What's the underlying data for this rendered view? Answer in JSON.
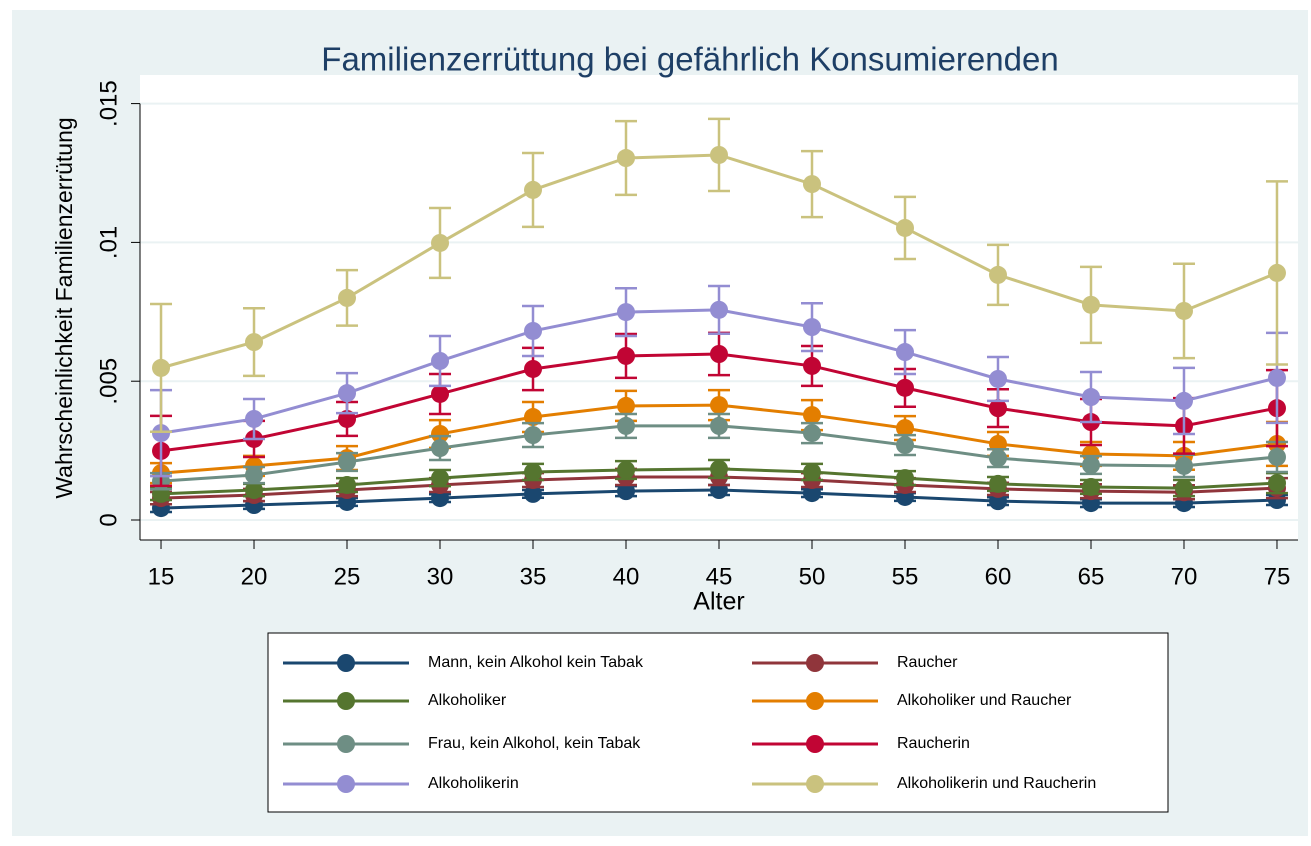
{
  "chart_data": {
    "type": "line",
    "title": "Familienzerrüttung bei gefährlich Konsumierenden",
    "x_label": "Alter",
    "y_label": "Wahrscheinlichkeit Familienzerrütung",
    "x": [
      15,
      20,
      25,
      30,
      35,
      40,
      45,
      50,
      55,
      60,
      65,
      70,
      75
    ],
    "xlim": [
      13.87,
      76.13
    ],
    "xticks": [
      15,
      20,
      25,
      30,
      35,
      40,
      45,
      50,
      55,
      60,
      65,
      70,
      75
    ],
    "ylim": [
      -0.00072,
      0.01603
    ],
    "yticks": [
      0,
      {
        "value": 0.005,
        "label": ".005"
      },
      {
        "value": 0.01,
        "label": ".01"
      },
      {
        "value": 0.015,
        "label": ".015"
      }
    ],
    "grid": true,
    "legend_position": "bottom",
    "legend_columns": 2,
    "series": [
      {
        "name": "Mann, kein Alkohol kein Tabak",
        "color": "#1a476f",
        "values": [
          0.00043,
          0.00054,
          0.00065,
          0.00079,
          0.00094,
          0.00104,
          0.00108,
          0.00097,
          0.00083,
          0.00068,
          0.00061,
          0.00061,
          0.00072
        ],
        "errors": [
          0.00014,
          0.00014,
          0.00014,
          0.00014,
          0.00014,
          0.00018,
          0.00018,
          0.00014,
          0.00014,
          0.00014,
          0.00014,
          0.00014,
          0.00018
        ]
      },
      {
        "name": "Raucher",
        "color": "#90353b",
        "values": [
          0.00079,
          0.0009,
          0.00108,
          0.00126,
          0.00144,
          0.00155,
          0.00155,
          0.00144,
          0.00126,
          0.00112,
          0.00104,
          0.001,
          0.00115
        ],
        "errors": [
          0.00022,
          0.00022,
          0.00022,
          0.00025,
          0.00025,
          0.00029,
          0.00029,
          0.00025,
          0.00025,
          0.00022,
          0.00025,
          0.00025,
          0.00036
        ]
      },
      {
        "name": "Alkoholiker",
        "color": "#55752f",
        "values": [
          0.00094,
          0.00108,
          0.00126,
          0.00151,
          0.00173,
          0.0018,
          0.00184,
          0.00173,
          0.00151,
          0.0013,
          0.00119,
          0.00115,
          0.00133
        ],
        "errors": [
          0.00022,
          0.00022,
          0.00025,
          0.00029,
          0.00029,
          0.00032,
          0.00032,
          0.00029,
          0.00025,
          0.00025,
          0.00025,
          0.00029,
          0.00036
        ]
      },
      {
        "name": "Alkoholiker und Raucher",
        "color": "#e37e00",
        "values": [
          0.00169,
          0.00195,
          0.00223,
          0.0031,
          0.00371,
          0.00411,
          0.00414,
          0.00378,
          0.00331,
          0.00274,
          0.00238,
          0.00231,
          0.00274
        ],
        "errors": [
          0.00036,
          0.00036,
          0.00043,
          0.0005,
          0.00054,
          0.00054,
          0.00054,
          0.00054,
          0.00043,
          0.00043,
          0.00043,
          0.0005,
          0.00079
        ]
      },
      {
        "name": "Frau, kein Alkohol, kein Tabak",
        "color": "#6e8e84",
        "values": [
          0.0014,
          0.00162,
          0.00209,
          0.00259,
          0.00306,
          0.00339,
          0.00339,
          0.00313,
          0.0027,
          0.00223,
          0.00198,
          0.00195,
          0.00227
        ],
        "errors": [
          0.00029,
          0.00029,
          0.00032,
          0.00043,
          0.00043,
          0.00043,
          0.00043,
          0.00036,
          0.00036,
          0.00032,
          0.00032,
          0.0004,
          0.00054
        ]
      },
      {
        "name": "Raucherin",
        "color": "#c10534",
        "values": [
          0.00249,
          0.00292,
          0.00364,
          0.00454,
          0.00544,
          0.00591,
          0.00598,
          0.00555,
          0.00476,
          0.00403,
          0.00353,
          0.00339,
          0.00403
        ],
        "errors": [
          0.00126,
          0.00065,
          0.00061,
          0.00072,
          0.00076,
          0.00079,
          0.00076,
          0.00072,
          0.00068,
          0.00068,
          0.00083,
          0.001,
          0.00137
        ]
      },
      {
        "name": "Alkoholikerin",
        "color": "#938dd2",
        "values": [
          0.00313,
          0.00364,
          0.00457,
          0.00573,
          0.00681,
          0.00749,
          0.00757,
          0.00695,
          0.00605,
          0.00508,
          0.00443,
          0.00429,
          0.00512
        ],
        "errors": [
          0.00155,
          0.00072,
          0.00072,
          0.0009,
          0.0009,
          0.00086,
          0.00086,
          0.00086,
          0.00079,
          0.00079,
          0.0009,
          0.00119,
          0.00162
        ]
      },
      {
        "name": "Alkoholikerin und Raucherin",
        "color": "#cac27e",
        "values": [
          0.00548,
          0.00641,
          0.008,
          0.00998,
          0.01189,
          0.01304,
          0.01315,
          0.0121,
          0.01052,
          0.00883,
          0.00775,
          0.00753,
          0.0089
        ],
        "errors": [
          0.0023,
          0.00122,
          0.001,
          0.00126,
          0.00133,
          0.00133,
          0.0013,
          0.00119,
          0.00112,
          0.00108,
          0.00137,
          0.0017,
          0.0033
        ]
      }
    ]
  }
}
